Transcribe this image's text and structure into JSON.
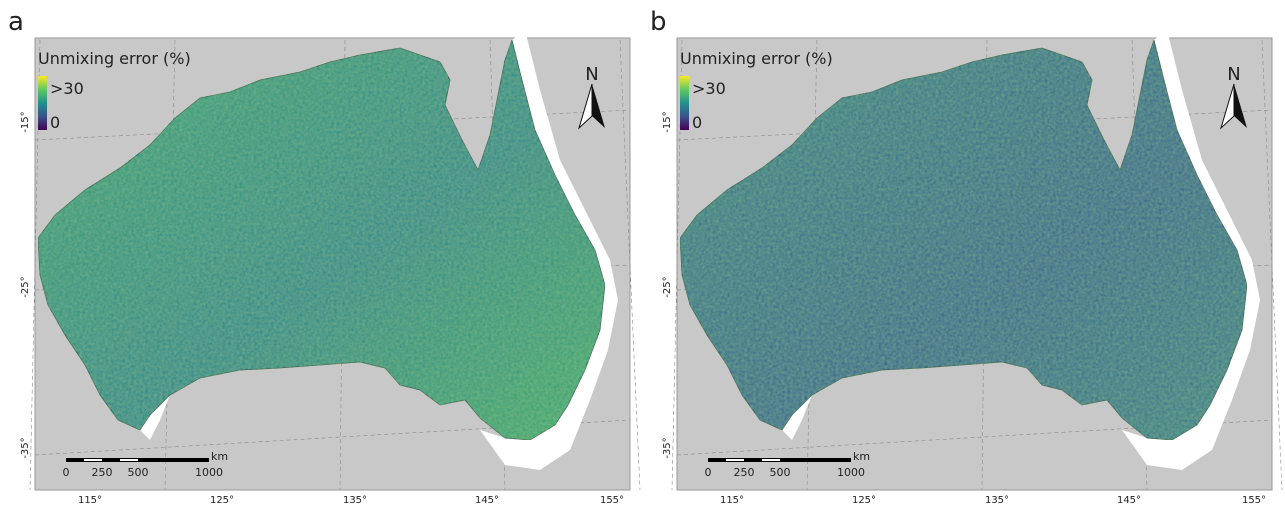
{
  "panels": [
    {
      "label": "a",
      "legend": {
        "title": "Unmixing error (%)",
        "max": ">30",
        "min": "0"
      },
      "north": "N",
      "lat_labels": [
        "-15°",
        "-25°",
        "-35°"
      ],
      "lon_labels": [
        "115°",
        "125°",
        "135°",
        "145°",
        "155°"
      ],
      "scale": {
        "unit": "km",
        "labels": [
          "0",
          "250",
          "500",
          "1000"
        ]
      }
    },
    {
      "label": "b",
      "legend": {
        "title": "Unmixing error (%)",
        "max": ">30",
        "min": "0"
      },
      "north": "N",
      "lat_labels": [
        "-15°",
        "-25°",
        "-35°"
      ],
      "lon_labels": [
        "115°",
        "125°",
        "135°",
        "145°",
        "155°"
      ],
      "scale": {
        "unit": "km",
        "labels": [
          "0",
          "250",
          "500",
          "1000"
        ]
      }
    }
  ]
}
